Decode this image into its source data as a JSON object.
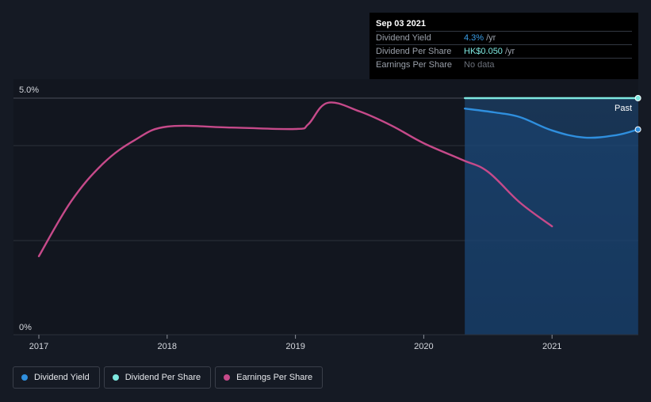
{
  "chart_data": {
    "type": "line",
    "ylabel": "",
    "ylim": [
      0,
      5
    ],
    "y_ticks": [
      {
        "value": 5,
        "label": "5.0%"
      },
      {
        "value": 0,
        "label": "0%"
      }
    ],
    "x_ticks": [
      {
        "value": 2017,
        "label": "2017"
      },
      {
        "value": 2018,
        "label": "2018"
      },
      {
        "value": 2019,
        "label": "2019"
      },
      {
        "value": 2020,
        "label": "2020"
      },
      {
        "value": 2021,
        "label": "2021"
      }
    ],
    "xlim": [
      2016.8,
      2021.67
    ],
    "gridlines": [
      5,
      4,
      2
    ],
    "past_region_start": 2020.32,
    "past_label": "Past",
    "series": [
      {
        "name": "Dividend Yield",
        "color": "#2f8fde",
        "points": [
          [
            2020.32,
            4.78
          ],
          [
            2020.55,
            4.7
          ],
          [
            2020.75,
            4.6
          ],
          [
            2021.0,
            4.32
          ],
          [
            2021.25,
            4.17
          ],
          [
            2021.5,
            4.22
          ],
          [
            2021.67,
            4.34
          ]
        ]
      },
      {
        "name": "Dividend Per Share",
        "color": "#7ee8e0",
        "points": [
          [
            2020.32,
            5.0
          ],
          [
            2021.67,
            5.0
          ]
        ]
      },
      {
        "name": "Earnings Per Share",
        "color": "#c64a8a",
        "points": [
          [
            2017.0,
            1.67
          ],
          [
            2017.25,
            2.82
          ],
          [
            2017.5,
            3.62
          ],
          [
            2017.75,
            4.12
          ],
          [
            2018.0,
            4.4
          ],
          [
            2018.5,
            4.38
          ],
          [
            2019.0,
            4.35
          ],
          [
            2019.1,
            4.45
          ],
          [
            2019.25,
            4.9
          ],
          [
            2019.5,
            4.72
          ],
          [
            2019.75,
            4.42
          ],
          [
            2020.0,
            4.05
          ],
          [
            2020.3,
            3.7
          ],
          [
            2020.5,
            3.45
          ],
          [
            2020.75,
            2.8
          ],
          [
            2021.0,
            2.3
          ]
        ]
      }
    ]
  },
  "tooltip": {
    "date": "Sep 03 2021",
    "rows": [
      {
        "label": "Dividend Yield",
        "value": "4.3%",
        "unit": "/yr"
      },
      {
        "label": "Dividend Per Share",
        "value": "HK$0.050",
        "unit": "/yr"
      },
      {
        "label": "Earnings Per Share",
        "value": "No data"
      }
    ]
  },
  "legend": [
    {
      "label": "Dividend Yield",
      "color": "#2f8fde"
    },
    {
      "label": "Dividend Per Share",
      "color": "#7ee8e0"
    },
    {
      "label": "Earnings Per Share",
      "color": "#c64a8a"
    }
  ]
}
